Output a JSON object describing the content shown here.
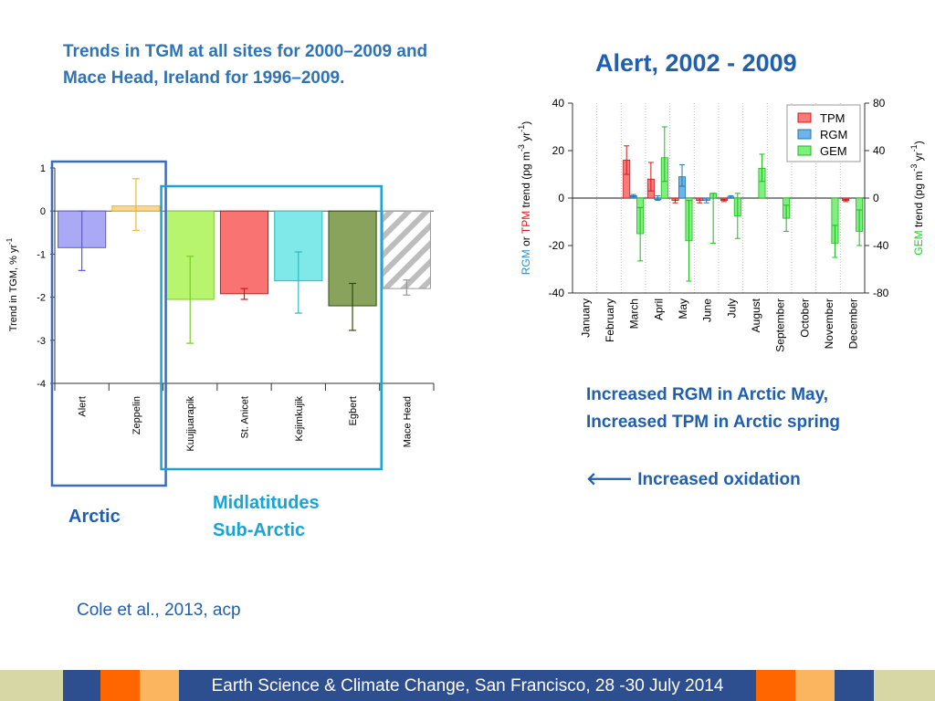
{
  "slide": {
    "left_title_line1": "Trends in TGM at all sites for 2000–2009 and",
    "left_title_line2": "Mace Head, Ireland for 1996–2009.",
    "right_title": "Alert, 2002 - 2009",
    "label_arctic": "Arctic",
    "label_midlatitudes": "Midlatitudes",
    "label_subarctic": "Sub-Arctic",
    "note_line1": "Increased RGM in Arctic May,",
    "note_line2": "Increased TPM in Arctic spring",
    "note_line3_arrow": "🡐",
    "note_line3": "Increased oxidation",
    "citation": "Cole et al., 2013, acp",
    "footer": "Earth Science & Climate Change, San Francisco, 28 -30 July 2014",
    "footer_colors": [
      "#d7d7a5",
      "#2e4f8f",
      "#ff6600",
      "#fbb55e",
      "#2e4f8f",
      "#ff6600",
      "#fbb55e",
      "#2e4f8f",
      "#d7d7a5"
    ]
  },
  "chart_data": [
    {
      "type": "bar",
      "ylabel": "Trend in TGM, % yr",
      "ylabel_sup": "-1",
      "ylim": [
        -4,
        1
      ],
      "yticks": [
        "1",
        "0",
        "-1",
        "-2",
        "-3",
        "-4"
      ],
      "categories": [
        "Alert",
        "Zeppelin",
        "Kuujjuarapik",
        "St. Anicet",
        "Kejimkujik",
        "Egbert",
        "Mace Head"
      ],
      "values": [
        -0.85,
        0.12,
        -2.05,
        -1.92,
        -1.62,
        -2.2,
        -1.8
      ],
      "error_low": [
        -1.38,
        -0.45,
        -3.07,
        -2.05,
        -2.37,
        -2.77,
        -1.95
      ],
      "error_high": [
        0.0,
        0.75,
        -1.05,
        -1.8,
        -0.95,
        -1.68,
        -1.6
      ],
      "colors": [
        "#a9a9f5",
        "#f7d88c",
        "#b7f56e",
        "#f97373",
        "#7fe8e8",
        "#8aa35c",
        "#ffffff"
      ],
      "edge_colors": [
        "#5a5ae0",
        "#e8b93a",
        "#7acb2a",
        "#d01818",
        "#2bbcbc",
        "#2a4d12",
        "#999999"
      ],
      "hatched": [
        false,
        false,
        false,
        false,
        false,
        false,
        true
      ],
      "groups": [
        {
          "name": "Arctic",
          "members": [
            "Alert",
            "Zeppelin"
          ],
          "color": "#3e6bb5"
        },
        {
          "name": "Midlatitudes Sub-Arctic",
          "members": [
            "Kuujjuarapik",
            "St. Anicet",
            "Kejimkujik",
            "Egbert"
          ],
          "color": "#19a3d6"
        }
      ]
    },
    {
      "type": "bar",
      "title": "Alert, 2002 - 2009",
      "categories": [
        "January",
        "February",
        "March",
        "April",
        "May",
        "June",
        "July",
        "August",
        "September",
        "October",
        "November",
        "December"
      ],
      "ylabel_left_parts": [
        "RGM",
        " or ",
        "TPM",
        " trend (pg m",
        "-3",
        " yr",
        "-1",
        ")"
      ],
      "ylabel_right_parts": [
        "GEM",
        " trend (pg m",
        "-3",
        " yr",
        "-1",
        ")"
      ],
      "ylim_left": [
        -40,
        40
      ],
      "yticks_left": [
        "40",
        "20",
        "0",
        "-20",
        "-40"
      ],
      "ylim_right": [
        -80,
        80
      ],
      "yticks_right": [
        "80",
        "40",
        "0",
        "-40",
        "-80"
      ],
      "legend": [
        "TPM",
        "RGM",
        "GEM"
      ],
      "legend_position": "top-right",
      "series": [
        {
          "name": "TPM",
          "axis": "left",
          "color": "#f97a7a",
          "edge": "#d01818",
          "values": [
            null,
            null,
            16,
            8,
            -1,
            -1,
            -1,
            null,
            null,
            null,
            null,
            -1
          ],
          "err_low": [
            null,
            null,
            10,
            3,
            -2,
            -2,
            -1.5,
            null,
            null,
            null,
            null,
            -1.5
          ],
          "err_high": [
            null,
            null,
            22,
            15,
            0,
            0,
            -0.5,
            null,
            null,
            null,
            null,
            -0.5
          ]
        },
        {
          "name": "RGM",
          "axis": "left",
          "color": "#6fb3e8",
          "edge": "#1f77b4",
          "values": [
            null,
            null,
            1,
            0,
            9,
            -1,
            0.5,
            null,
            null,
            null,
            null,
            null
          ],
          "err_low": [
            null,
            null,
            0.5,
            -1,
            5,
            -2,
            0,
            null,
            null,
            null,
            null,
            null
          ],
          "err_high": [
            null,
            null,
            1.5,
            1,
            14,
            0,
            1,
            null,
            null,
            null,
            null,
            null
          ]
        },
        {
          "name": "GEM",
          "axis": "right",
          "color": "#7ef07e",
          "edge": "#1fb81f",
          "values": [
            null,
            null,
            -30,
            34,
            -36,
            4,
            -15,
            25,
            -17,
            null,
            -38,
            -28
          ],
          "err_low": [
            null,
            null,
            -53,
            14,
            -70,
            -38,
            -34,
            14,
            -28,
            null,
            -50,
            -40
          ],
          "err_high": [
            null,
            null,
            -8,
            60,
            -2,
            4,
            4,
            37,
            -6,
            null,
            -23,
            -10
          ]
        }
      ]
    }
  ]
}
